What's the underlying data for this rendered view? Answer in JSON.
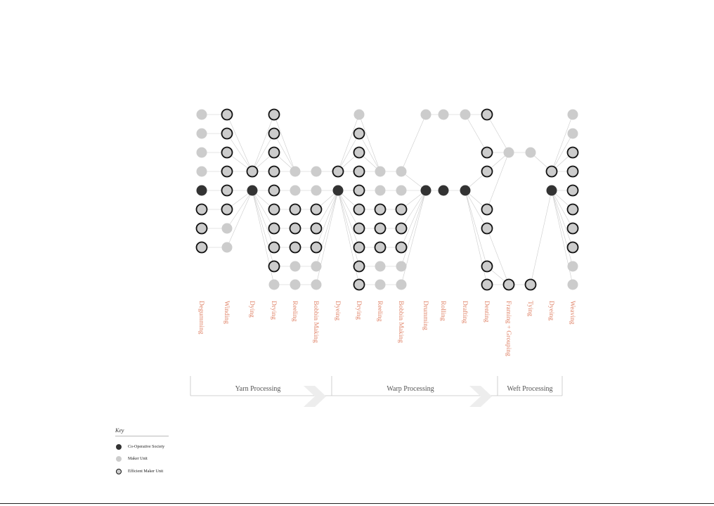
{
  "colors": {
    "co_operative_society": "#333333",
    "maker_unit": "#cccccc",
    "efficient_border": "#111111",
    "stage_label": "#e0856a",
    "edge": "#cccccc"
  },
  "stages": [
    {
      "label": "Degumming",
      "nodes": [
        "maker",
        "maker",
        "maker",
        "maker",
        "coop",
        "eff",
        "eff",
        "eff",
        null,
        null
      ]
    },
    {
      "label": "Winding",
      "nodes": [
        "eff",
        "eff",
        "eff",
        "eff",
        "eff",
        "eff",
        "maker",
        "maker",
        null,
        null
      ]
    },
    {
      "label": "Dying",
      "nodes": [
        null,
        null,
        null,
        "eff",
        "coop",
        null,
        null,
        null,
        null,
        null
      ]
    },
    {
      "label": "Drying",
      "nodes": [
        "eff",
        "eff",
        "eff",
        "eff",
        "eff",
        "eff",
        "eff",
        "eff",
        "eff",
        "maker"
      ]
    },
    {
      "label": "Reeling",
      "nodes": [
        null,
        null,
        null,
        "maker",
        "maker",
        "eff",
        "eff",
        "eff",
        "maker",
        "maker"
      ]
    },
    {
      "label": "Bobbin Making",
      "nodes": [
        null,
        null,
        null,
        "maker",
        "maker",
        "eff",
        "eff",
        "eff",
        "maker",
        "maker"
      ]
    },
    {
      "label": "Dyeing",
      "nodes": [
        null,
        null,
        null,
        "eff",
        "coop",
        null,
        null,
        null,
        null,
        null
      ]
    },
    {
      "label": "Drying",
      "nodes": [
        "maker",
        "eff",
        "eff",
        "eff",
        "eff",
        "eff",
        "eff",
        "eff",
        "eff",
        "eff"
      ]
    },
    {
      "label": "Reeling",
      "nodes": [
        null,
        null,
        null,
        "maker",
        "maker",
        "eff",
        "eff",
        "eff",
        "maker",
        "maker"
      ]
    },
    {
      "label": "Bobbin Making",
      "nodes": [
        null,
        null,
        null,
        "maker",
        "maker",
        "eff",
        "eff",
        "eff",
        "maker",
        "maker"
      ]
    },
    {
      "label": "Drumming",
      "nodes": [
        "maker",
        null,
        null,
        null,
        "coop",
        null,
        null,
        null,
        null,
        null
      ]
    },
    {
      "label": "Rolling",
      "nodes": [
        "maker",
        null,
        null,
        null,
        "coop",
        null,
        null,
        null,
        null,
        null
      ]
    },
    {
      "label": "Drafting",
      "nodes": [
        "maker",
        null,
        null,
        null,
        "coop",
        null,
        null,
        null,
        null,
        null
      ]
    },
    {
      "label": "Denting",
      "nodes": [
        "eff",
        null,
        "eff",
        "eff",
        null,
        "eff",
        "eff",
        null,
        "eff",
        "eff"
      ]
    },
    {
      "label": "Framing + Grouping",
      "nodes": [
        null,
        null,
        "maker",
        null,
        null,
        null,
        null,
        null,
        null,
        "eff"
      ]
    },
    {
      "label": "Tying",
      "nodes": [
        null,
        null,
        "maker",
        null,
        null,
        null,
        null,
        null,
        null,
        "eff"
      ]
    },
    {
      "label": "Dyeing",
      "nodes": [
        null,
        null,
        null,
        "eff",
        "coop",
        null,
        null,
        null,
        null,
        null
      ]
    },
    {
      "label": "Weaving",
      "nodes": [
        "maker",
        "maker",
        "eff",
        "eff",
        "eff",
        "eff",
        "eff",
        "eff",
        "maker",
        "maker"
      ]
    }
  ],
  "phases": [
    {
      "label": "Yarn Processing"
    },
    {
      "label": "Warp Processing"
    },
    {
      "label": "Weft Processing"
    }
  ],
  "key": {
    "title": "Key",
    "items": [
      {
        "type": "coop",
        "label": "Co-Operative Society"
      },
      {
        "type": "maker",
        "label": "Maker Unit"
      },
      {
        "type": "eff",
        "label": "Efficient Maker Unit"
      }
    ]
  }
}
